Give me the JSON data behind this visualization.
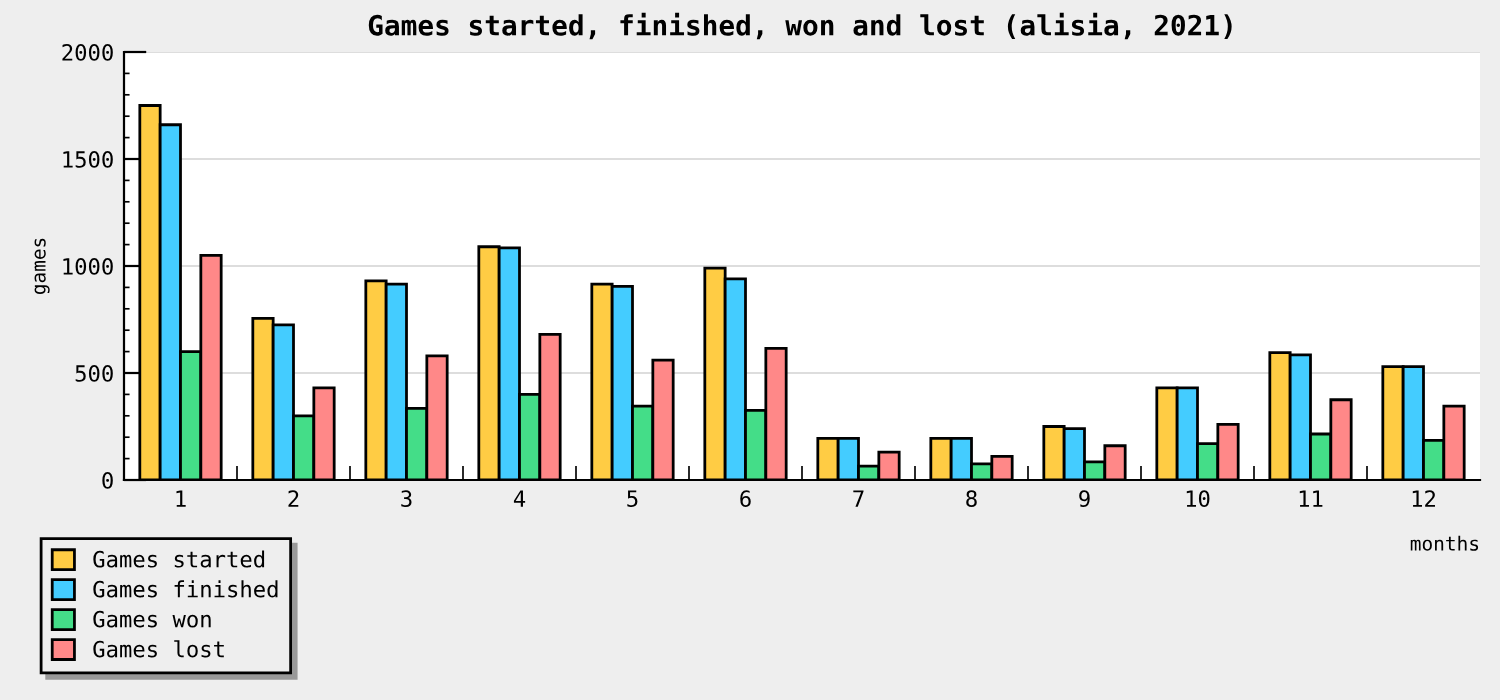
{
  "chart_data": {
    "type": "bar",
    "title": "Games started, finished, won and lost (alisia, 2021)",
    "xlabel": "months",
    "ylabel": "games",
    "categories": [
      "1",
      "2",
      "3",
      "4",
      "5",
      "6",
      "7",
      "8",
      "9",
      "10",
      "11",
      "12"
    ],
    "series": [
      {
        "name": "Games started",
        "color": "#ffcc44",
        "values": [
          1750,
          755,
          930,
          1090,
          915,
          990,
          195,
          195,
          250,
          430,
          595,
          530
        ]
      },
      {
        "name": "Games finished",
        "color": "#44ccff",
        "values": [
          1660,
          725,
          915,
          1085,
          905,
          940,
          195,
          195,
          240,
          430,
          585,
          530
        ]
      },
      {
        "name": "Games won",
        "color": "#44dd88",
        "values": [
          600,
          300,
          335,
          400,
          345,
          325,
          65,
          75,
          85,
          170,
          215,
          185
        ]
      },
      {
        "name": "Games lost",
        "color": "#ff8888",
        "values": [
          1050,
          430,
          580,
          680,
          560,
          615,
          130,
          110,
          160,
          260,
          375,
          345
        ]
      }
    ],
    "ylim": [
      0,
      2000
    ],
    "yticks": [
      0,
      500,
      1000,
      1500,
      2000
    ],
    "grid": "y",
    "legend": "bottom left"
  }
}
